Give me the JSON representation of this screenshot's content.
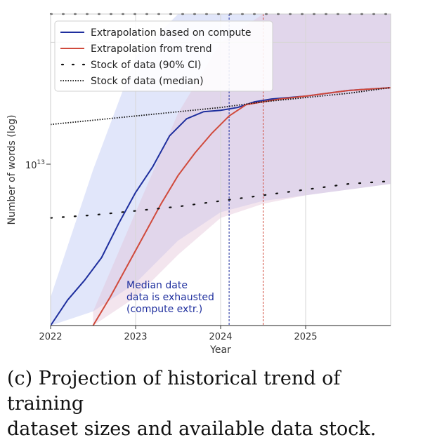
{
  "chart_data": {
    "type": "line",
    "xlabel": "Year",
    "ylabel": "Number of words (log)",
    "x_ticks": [
      "2022",
      "2023",
      "2024",
      "2025"
    ],
    "y_tick_base": "10",
    "y_tick_exp": "13",
    "xlim": [
      2022.0,
      2026.0
    ],
    "ylim_log10": [
      12.0,
      13.1
    ],
    "log_scale_y": true,
    "grid": true,
    "legend_position": "top-left",
    "legend": [
      {
        "label": "Extrapolation based on compute",
        "color": "#1f2f9e",
        "style": "solid"
      },
      {
        "label": "Extrapolation from trend",
        "color": "#d04a3c",
        "style": "solid"
      },
      {
        "label": "Stock of data (90% CI)",
        "color": "#111111",
        "style": "dots"
      },
      {
        "label": "Stock of data (median)",
        "color": "#111111",
        "style": "dense-dots"
      }
    ],
    "series": [
      {
        "name": "Extrapolation based on compute",
        "color": "#1f2f9e",
        "x": [
          2022.0,
          2022.2,
          2022.4,
          2022.6,
          2022.8,
          2023.0,
          2023.2,
          2023.4,
          2023.6,
          2023.8,
          2024.0,
          2024.2,
          2024.4,
          2024.6,
          2025.0,
          2025.5,
          2026.0
        ],
        "y": [
          12.0,
          12.09,
          12.16,
          12.24,
          12.36,
          12.47,
          12.56,
          12.67,
          12.73,
          12.755,
          12.76,
          12.77,
          12.79,
          12.8,
          12.81,
          12.83,
          12.84
        ]
      },
      {
        "name": "Extrapolation from trend",
        "color": "#d04a3c",
        "x": [
          2022.5,
          2022.7,
          2022.9,
          2023.1,
          2023.3,
          2023.5,
          2023.7,
          2023.9,
          2024.1,
          2024.3,
          2024.5,
          2024.7,
          2025.0,
          2025.5,
          2026.0
        ],
        "y": [
          12.0,
          12.1,
          12.21,
          12.32,
          12.43,
          12.53,
          12.61,
          12.68,
          12.74,
          12.78,
          12.79,
          12.8,
          12.81,
          12.83,
          12.84
        ]
      },
      {
        "name": "Stock of data (median)",
        "color": "#111111",
        "x": [
          2022.0,
          2022.5,
          2023.0,
          2023.5,
          2024.0,
          2024.5,
          2025.0,
          2025.5,
          2026.0
        ],
        "y": [
          12.71,
          12.725,
          12.74,
          12.755,
          12.77,
          12.79,
          12.805,
          12.82,
          12.84
        ]
      },
      {
        "name": "Stock of data (90% CI) upper",
        "color": "#111111",
        "x": [
          2022.0,
          2022.5,
          2023.0,
          2023.5,
          2024.0,
          2024.5,
          2025.0,
          2025.5,
          2026.0
        ],
        "y": [
          13.1,
          13.11,
          13.13,
          13.15,
          13.18,
          13.22,
          13.24,
          13.25,
          13.26
        ]
      },
      {
        "name": "Stock of data (90% CI) lower",
        "color": "#111111",
        "x": [
          2022.0,
          2022.5,
          2023.0,
          2023.5,
          2024.0,
          2024.5,
          2025.0,
          2025.5,
          2026.0
        ],
        "y": [
          12.38,
          12.39,
          12.405,
          12.42,
          12.44,
          12.46,
          12.48,
          12.5,
          12.51
        ]
      }
    ],
    "bands": [
      {
        "name": "compute band",
        "color": "#b8c4f2",
        "x": [
          2022.0,
          2022.5,
          2023.0,
          2023.5,
          2024.0,
          2024.5,
          2025.0,
          2025.5,
          2026.0
        ],
        "upper": [
          12.1,
          12.55,
          12.95,
          13.1,
          13.2,
          13.22,
          13.25,
          13.26,
          13.27
        ],
        "lower": [
          12.0,
          12.05,
          12.15,
          12.3,
          12.4,
          12.44,
          12.46,
          12.48,
          12.5
        ]
      },
      {
        "name": "trend band",
        "color": "#e3c2d6",
        "x": [
          2022.5,
          2023.0,
          2023.5,
          2024.0,
          2024.5,
          2025.0,
          2025.5,
          2026.0
        ],
        "upper": [
          12.05,
          12.4,
          12.75,
          13.0,
          13.1,
          13.18,
          13.22,
          13.24
        ],
        "lower": [
          12.0,
          12.1,
          12.25,
          12.38,
          12.43,
          12.46,
          12.48,
          12.5
        ]
      }
    ],
    "vlines": [
      {
        "name": "median exhaustion (compute extr.)",
        "x": 2024.1,
        "color": "#1f2f9e"
      },
      {
        "name": "median exhaustion (trend)",
        "x": 2024.5,
        "color": "#d04a3c"
      }
    ],
    "annotation": [
      "Median date",
      "data is exhausted",
      "(compute extr.)"
    ],
    "annotation_color": "#1f2f9e"
  },
  "caption": {
    "line1": "(c) Projection of historical trend of training",
    "line2": "dataset sizes and available data stock."
  }
}
